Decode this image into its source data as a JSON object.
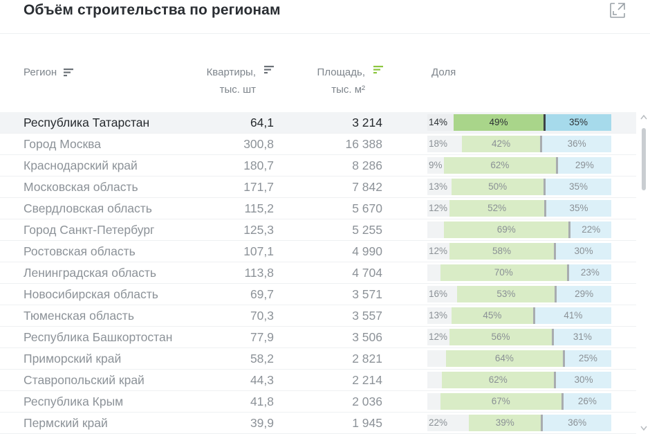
{
  "title": "Объём строительства по регионам",
  "header": {
    "region": "Регион",
    "flats_line1": "Квартиры,",
    "flats_line2": "тыс. шт",
    "area_line1": "Площадь,",
    "area_line2": "тыс. м²",
    "share": "Доля"
  },
  "colors": {
    "accent_sort": "#8cc63f",
    "seg_green": "#a9d58a",
    "seg_blue": "#a6daeb"
  },
  "rows": [
    {
      "region": "Республика Татарстан",
      "flats": "64,1",
      "area": "3 214",
      "share": [
        14,
        49,
        35
      ],
      "labels": [
        "14%",
        "49%",
        "35%"
      ]
    },
    {
      "region": "Город Москва",
      "flats": "300,8",
      "area": "16 388",
      "share": [
        18,
        42,
        36
      ],
      "labels": [
        "18%",
        "42%",
        "36%"
      ]
    },
    {
      "region": "Краснодарский край",
      "flats": "180,7",
      "area": "8 286",
      "share": [
        9,
        62,
        29
      ],
      "labels": [
        "9%",
        "62%",
        "29%"
      ]
    },
    {
      "region": "Московская область",
      "flats": "171,7",
      "area": "7 842",
      "share": [
        13,
        50,
        35
      ],
      "labels": [
        "13%",
        "50%",
        "35%"
      ]
    },
    {
      "region": "Свердловская область",
      "flats": "115,2",
      "area": "5 670",
      "share": [
        12,
        52,
        35
      ],
      "labels": [
        "12%",
        "52%",
        "35%"
      ]
    },
    {
      "region": "Город Санкт-Петербург",
      "flats": "125,3",
      "area": "5 255",
      "share": [
        9,
        69,
        22
      ],
      "labels": [
        "",
        "69%",
        "22%"
      ]
    },
    {
      "region": "Ростовская область",
      "flats": "107,1",
      "area": "4 990",
      "share": [
        12,
        58,
        30
      ],
      "labels": [
        "12%",
        "58%",
        "30%"
      ]
    },
    {
      "region": "Ленинградская область",
      "flats": "113,8",
      "area": "4 704",
      "share": [
        7,
        70,
        23
      ],
      "labels": [
        "",
        "70%",
        "23%"
      ]
    },
    {
      "region": "Новосибирская область",
      "flats": "69,7",
      "area": "3 571",
      "share": [
        16,
        53,
        29
      ],
      "labels": [
        "16%",
        "53%",
        "29%"
      ]
    },
    {
      "region": "Тюменская область",
      "flats": "70,3",
      "area": "3 557",
      "share": [
        13,
        45,
        41
      ],
      "labels": [
        "13%",
        "45%",
        "41%"
      ]
    },
    {
      "region": "Республика Башкортостан",
      "flats": "77,9",
      "area": "3 506",
      "share": [
        12,
        56,
        31
      ],
      "labels": [
        "12%",
        "56%",
        "31%"
      ]
    },
    {
      "region": "Приморский край",
      "flats": "58,2",
      "area": "2 821",
      "share": [
        10,
        64,
        25
      ],
      "labels": [
        "",
        "64%",
        "25%"
      ]
    },
    {
      "region": "Ставропольский край",
      "flats": "44,3",
      "area": "2 214",
      "share": [
        8,
        62,
        30
      ],
      "labels": [
        "",
        "62%",
        "30%"
      ]
    },
    {
      "region": "Республика Крым",
      "flats": "41,8",
      "area": "2 036",
      "share": [
        7,
        67,
        26
      ],
      "labels": [
        "",
        "67%",
        "26%"
      ]
    },
    {
      "region": "Пермский край",
      "flats": "39,9",
      "area": "1 945",
      "share": [
        22,
        39,
        36
      ],
      "labels": [
        "22%",
        "39%",
        "36%"
      ]
    }
  ]
}
